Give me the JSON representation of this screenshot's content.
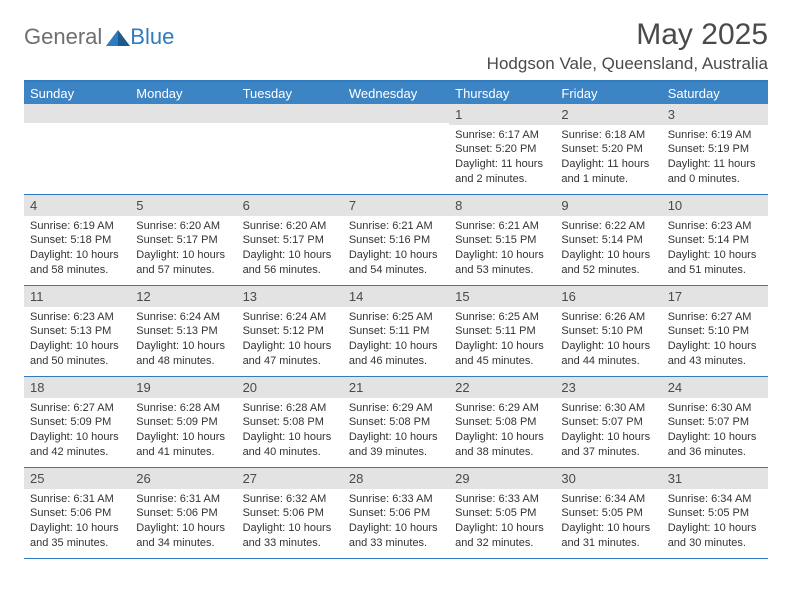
{
  "logo": {
    "text_general": "General",
    "text_blue": "Blue",
    "icon_fill": "#2f7bbf"
  },
  "header": {
    "month_year": "May 2025",
    "location": "Hodgson Vale, Queensland, Australia"
  },
  "colors": {
    "header_bg": "#3d84c5",
    "border": "#2f7bbf",
    "day_number_bg": "#e3e3e3",
    "text_dark": "#4a4a4a",
    "text_body": "#333333"
  },
  "day_names": [
    "Sunday",
    "Monday",
    "Tuesday",
    "Wednesday",
    "Thursday",
    "Friday",
    "Saturday"
  ],
  "weeks": [
    [
      {
        "n": "",
        "sunrise": "",
        "sunset": "",
        "daylight": ""
      },
      {
        "n": "",
        "sunrise": "",
        "sunset": "",
        "daylight": ""
      },
      {
        "n": "",
        "sunrise": "",
        "sunset": "",
        "daylight": ""
      },
      {
        "n": "",
        "sunrise": "",
        "sunset": "",
        "daylight": ""
      },
      {
        "n": "1",
        "sunrise": "Sunrise: 6:17 AM",
        "sunset": "Sunset: 5:20 PM",
        "daylight": "Daylight: 11 hours and 2 minutes."
      },
      {
        "n": "2",
        "sunrise": "Sunrise: 6:18 AM",
        "sunset": "Sunset: 5:20 PM",
        "daylight": "Daylight: 11 hours and 1 minute."
      },
      {
        "n": "3",
        "sunrise": "Sunrise: 6:19 AM",
        "sunset": "Sunset: 5:19 PM",
        "daylight": "Daylight: 11 hours and 0 minutes."
      }
    ],
    [
      {
        "n": "4",
        "sunrise": "Sunrise: 6:19 AM",
        "sunset": "Sunset: 5:18 PM",
        "daylight": "Daylight: 10 hours and 58 minutes."
      },
      {
        "n": "5",
        "sunrise": "Sunrise: 6:20 AM",
        "sunset": "Sunset: 5:17 PM",
        "daylight": "Daylight: 10 hours and 57 minutes."
      },
      {
        "n": "6",
        "sunrise": "Sunrise: 6:20 AM",
        "sunset": "Sunset: 5:17 PM",
        "daylight": "Daylight: 10 hours and 56 minutes."
      },
      {
        "n": "7",
        "sunrise": "Sunrise: 6:21 AM",
        "sunset": "Sunset: 5:16 PM",
        "daylight": "Daylight: 10 hours and 54 minutes."
      },
      {
        "n": "8",
        "sunrise": "Sunrise: 6:21 AM",
        "sunset": "Sunset: 5:15 PM",
        "daylight": "Daylight: 10 hours and 53 minutes."
      },
      {
        "n": "9",
        "sunrise": "Sunrise: 6:22 AM",
        "sunset": "Sunset: 5:14 PM",
        "daylight": "Daylight: 10 hours and 52 minutes."
      },
      {
        "n": "10",
        "sunrise": "Sunrise: 6:23 AM",
        "sunset": "Sunset: 5:14 PM",
        "daylight": "Daylight: 10 hours and 51 minutes."
      }
    ],
    [
      {
        "n": "11",
        "sunrise": "Sunrise: 6:23 AM",
        "sunset": "Sunset: 5:13 PM",
        "daylight": "Daylight: 10 hours and 50 minutes."
      },
      {
        "n": "12",
        "sunrise": "Sunrise: 6:24 AM",
        "sunset": "Sunset: 5:13 PM",
        "daylight": "Daylight: 10 hours and 48 minutes."
      },
      {
        "n": "13",
        "sunrise": "Sunrise: 6:24 AM",
        "sunset": "Sunset: 5:12 PM",
        "daylight": "Daylight: 10 hours and 47 minutes."
      },
      {
        "n": "14",
        "sunrise": "Sunrise: 6:25 AM",
        "sunset": "Sunset: 5:11 PM",
        "daylight": "Daylight: 10 hours and 46 minutes."
      },
      {
        "n": "15",
        "sunrise": "Sunrise: 6:25 AM",
        "sunset": "Sunset: 5:11 PM",
        "daylight": "Daylight: 10 hours and 45 minutes."
      },
      {
        "n": "16",
        "sunrise": "Sunrise: 6:26 AM",
        "sunset": "Sunset: 5:10 PM",
        "daylight": "Daylight: 10 hours and 44 minutes."
      },
      {
        "n": "17",
        "sunrise": "Sunrise: 6:27 AM",
        "sunset": "Sunset: 5:10 PM",
        "daylight": "Daylight: 10 hours and 43 minutes."
      }
    ],
    [
      {
        "n": "18",
        "sunrise": "Sunrise: 6:27 AM",
        "sunset": "Sunset: 5:09 PM",
        "daylight": "Daylight: 10 hours and 42 minutes."
      },
      {
        "n": "19",
        "sunrise": "Sunrise: 6:28 AM",
        "sunset": "Sunset: 5:09 PM",
        "daylight": "Daylight: 10 hours and 41 minutes."
      },
      {
        "n": "20",
        "sunrise": "Sunrise: 6:28 AM",
        "sunset": "Sunset: 5:08 PM",
        "daylight": "Daylight: 10 hours and 40 minutes."
      },
      {
        "n": "21",
        "sunrise": "Sunrise: 6:29 AM",
        "sunset": "Sunset: 5:08 PM",
        "daylight": "Daylight: 10 hours and 39 minutes."
      },
      {
        "n": "22",
        "sunrise": "Sunrise: 6:29 AM",
        "sunset": "Sunset: 5:08 PM",
        "daylight": "Daylight: 10 hours and 38 minutes."
      },
      {
        "n": "23",
        "sunrise": "Sunrise: 6:30 AM",
        "sunset": "Sunset: 5:07 PM",
        "daylight": "Daylight: 10 hours and 37 minutes."
      },
      {
        "n": "24",
        "sunrise": "Sunrise: 6:30 AM",
        "sunset": "Sunset: 5:07 PM",
        "daylight": "Daylight: 10 hours and 36 minutes."
      }
    ],
    [
      {
        "n": "25",
        "sunrise": "Sunrise: 6:31 AM",
        "sunset": "Sunset: 5:06 PM",
        "daylight": "Daylight: 10 hours and 35 minutes."
      },
      {
        "n": "26",
        "sunrise": "Sunrise: 6:31 AM",
        "sunset": "Sunset: 5:06 PM",
        "daylight": "Daylight: 10 hours and 34 minutes."
      },
      {
        "n": "27",
        "sunrise": "Sunrise: 6:32 AM",
        "sunset": "Sunset: 5:06 PM",
        "daylight": "Daylight: 10 hours and 33 minutes."
      },
      {
        "n": "28",
        "sunrise": "Sunrise: 6:33 AM",
        "sunset": "Sunset: 5:06 PM",
        "daylight": "Daylight: 10 hours and 33 minutes."
      },
      {
        "n": "29",
        "sunrise": "Sunrise: 6:33 AM",
        "sunset": "Sunset: 5:05 PM",
        "daylight": "Daylight: 10 hours and 32 minutes."
      },
      {
        "n": "30",
        "sunrise": "Sunrise: 6:34 AM",
        "sunset": "Sunset: 5:05 PM",
        "daylight": "Daylight: 10 hours and 31 minutes."
      },
      {
        "n": "31",
        "sunrise": "Sunrise: 6:34 AM",
        "sunset": "Sunset: 5:05 PM",
        "daylight": "Daylight: 10 hours and 30 minutes."
      }
    ]
  ]
}
